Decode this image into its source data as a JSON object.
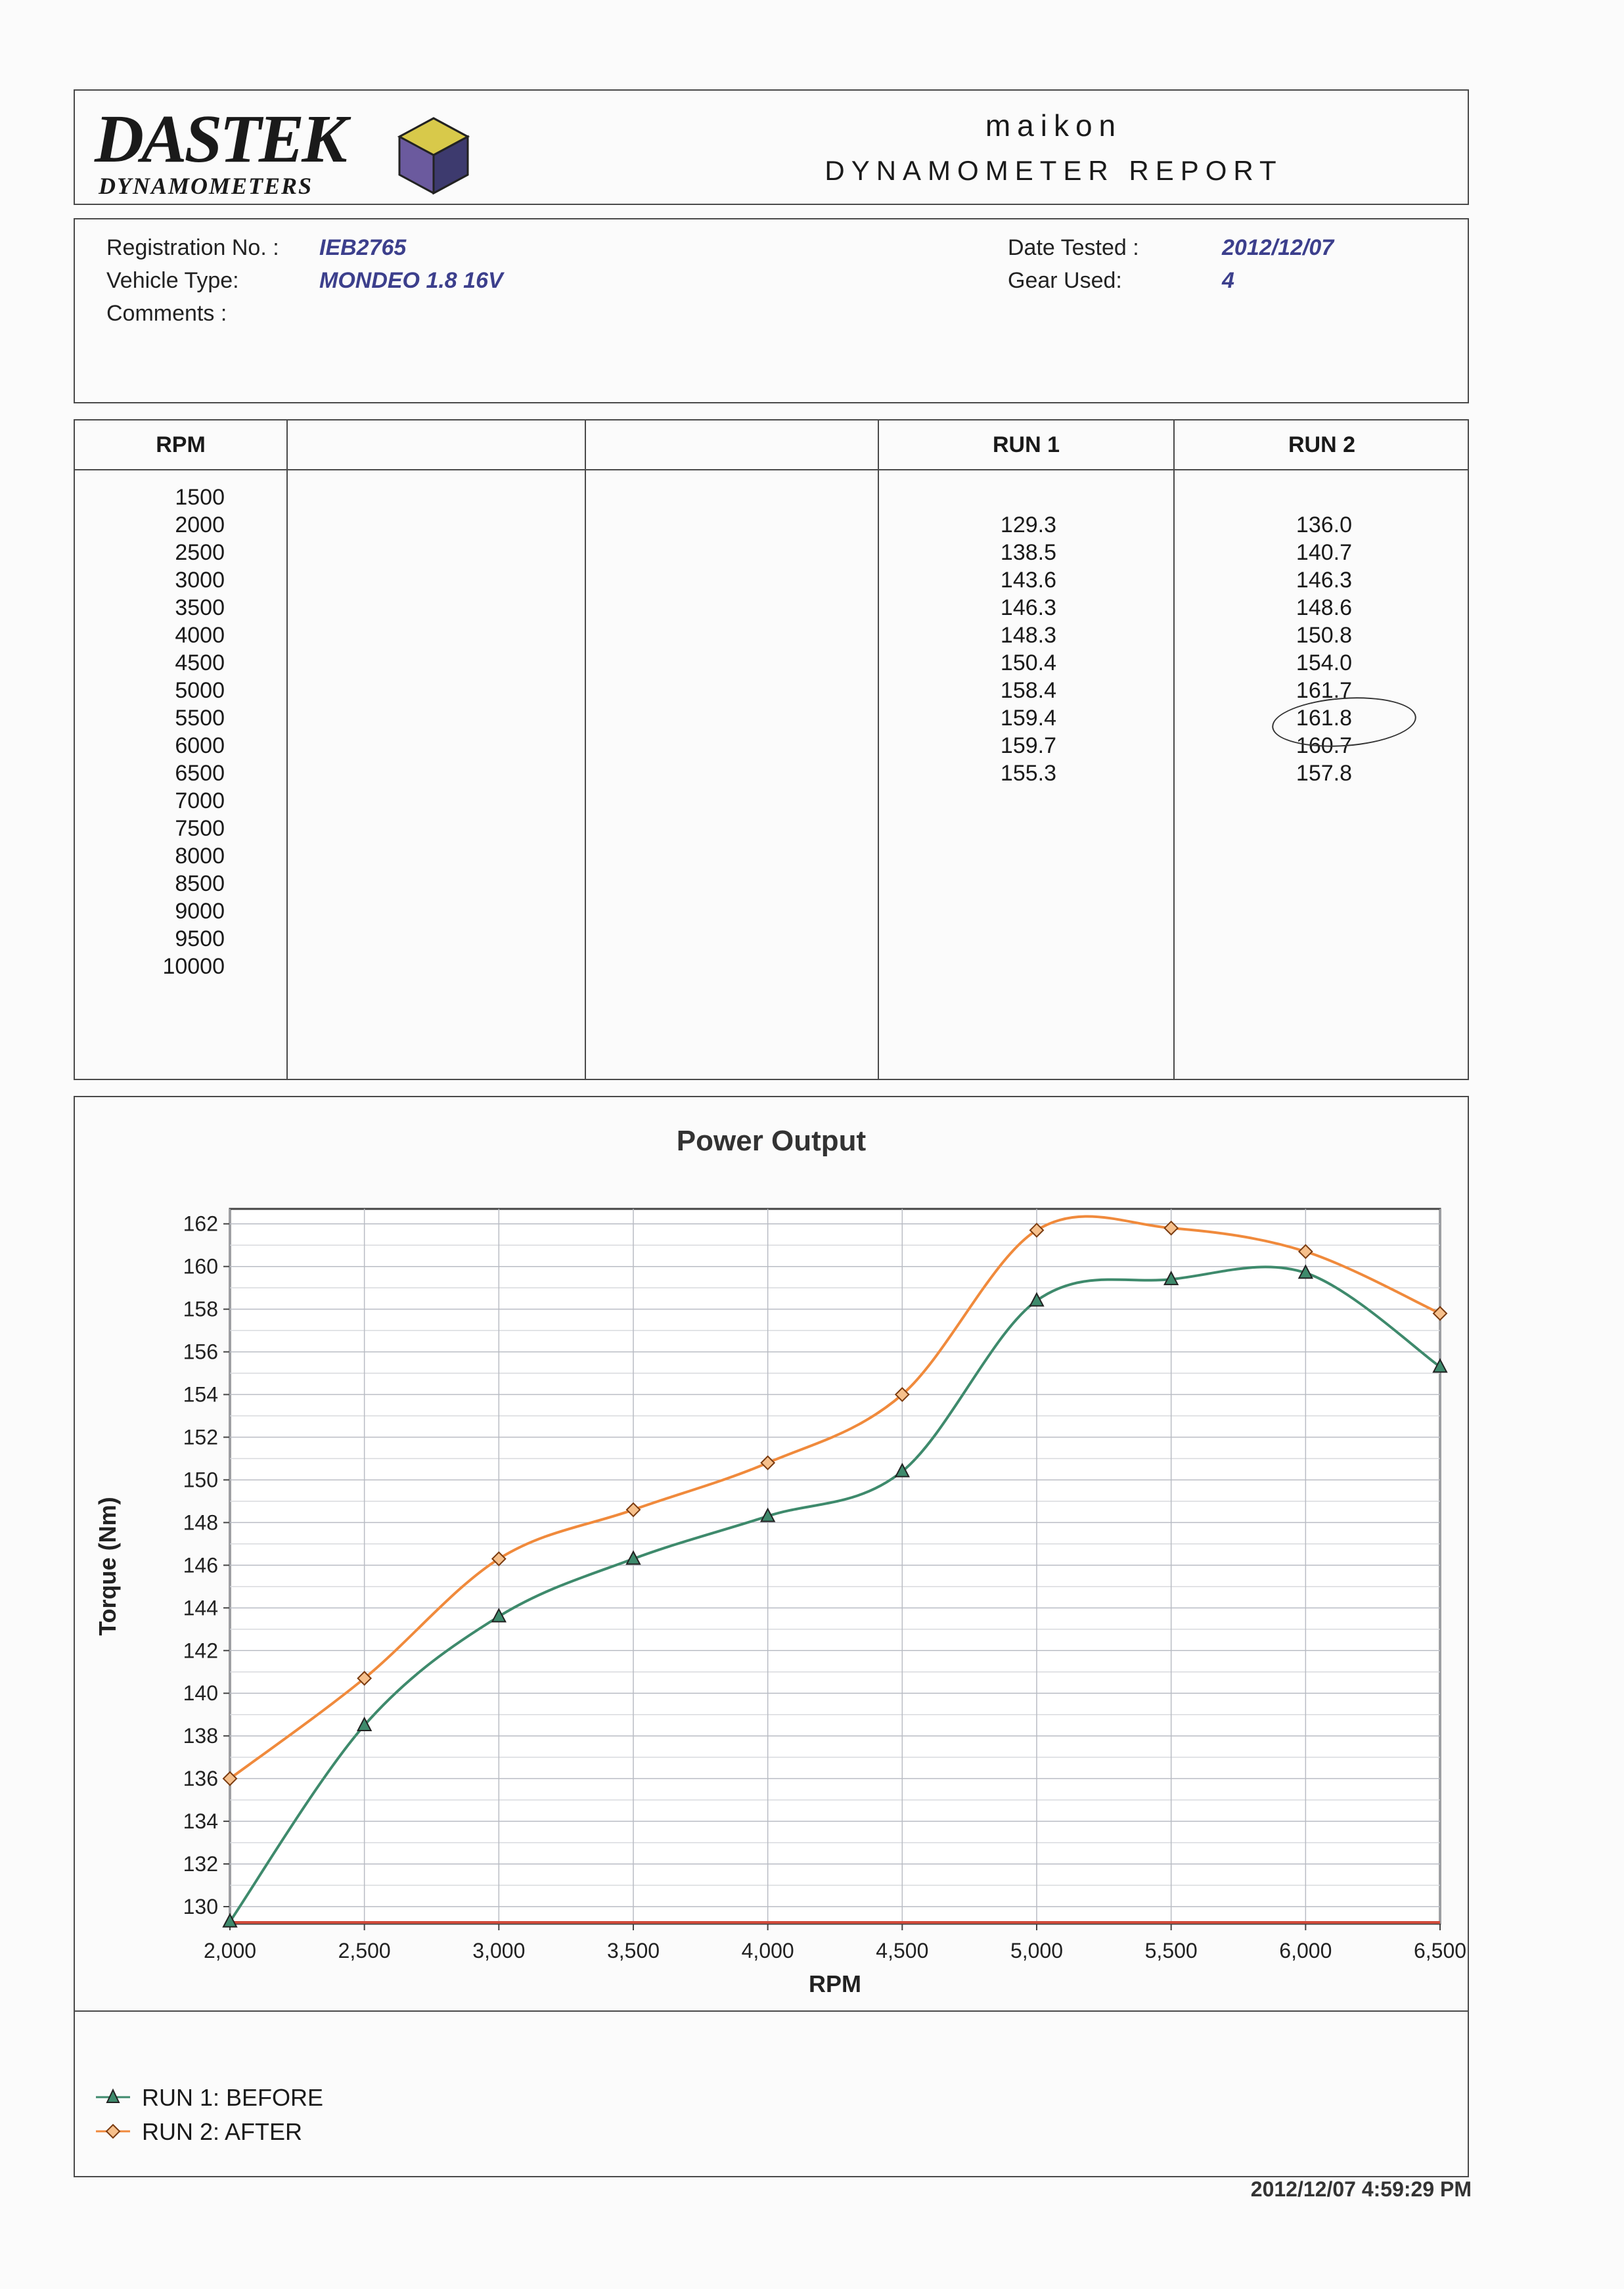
{
  "header": {
    "logo_text": "DASTEK",
    "logo_sub": "DYNAMOMETERS",
    "company": "maikon",
    "report_title": "DYNAMOMETER REPORT"
  },
  "info": {
    "registration_label": "Registration No. :",
    "registration_value": "IEB2765",
    "vehicle_label": "Vehicle Type:",
    "vehicle_value": "MONDEO 1.8 16V",
    "comments_label": "Comments :",
    "date_label": "Date Tested :",
    "date_value": "2012/12/07",
    "gear_label": "Gear Used:",
    "gear_value": "4"
  },
  "table": {
    "headers": [
      "RPM",
      "",
      "",
      "RUN 1",
      "RUN 2"
    ],
    "rpm": [
      "1500",
      "2000",
      "2500",
      "3000",
      "3500",
      "4000",
      "4500",
      "5000",
      "5500",
      "6000",
      "6500",
      "7000",
      "7500",
      "8000",
      "8500",
      "9000",
      "9500",
      "10000"
    ],
    "run1": [
      "",
      "129.3",
      "138.5",
      "143.6",
      "146.3",
      "148.3",
      "150.4",
      "158.4",
      "159.4",
      "159.7",
      "155.3",
      "",
      "",
      "",
      "",
      "",
      "",
      ""
    ],
    "run2": [
      "",
      "136.0",
      "140.7",
      "146.3",
      "148.6",
      "150.8",
      "154.0",
      "161.7",
      "161.8",
      "160.7",
      "157.8",
      "",
      "",
      "",
      "",
      "",
      "",
      ""
    ]
  },
  "chart_data": {
    "type": "line",
    "title": "Power Output",
    "xlabel": "RPM",
    "ylabel": "Torque (Nm)",
    "x": [
      2000,
      2500,
      3000,
      3500,
      4000,
      4500,
      5000,
      5500,
      6000,
      6500
    ],
    "x_tick_labels": [
      "2,000",
      "2,500",
      "3,000",
      "3,500",
      "4,000",
      "4,500",
      "5,000",
      "5,500",
      "6,000",
      "6,500"
    ],
    "y_ticks": [
      130,
      132,
      134,
      136,
      138,
      140,
      142,
      144,
      146,
      148,
      150,
      152,
      154,
      156,
      158,
      160,
      162
    ],
    "xlim": [
      2000,
      6500
    ],
    "ylim": [
      129.2,
      162.7
    ],
    "grid": true,
    "legend_position": "bottom-left",
    "series": [
      {
        "name": "RUN 1: BEFORE",
        "marker": "triangle",
        "color": "#3e8a6c",
        "values": [
          129.3,
          138.5,
          143.6,
          146.3,
          148.3,
          150.4,
          158.4,
          159.4,
          159.7,
          155.3
        ]
      },
      {
        "name": "RUN 2: AFTER",
        "marker": "diamond",
        "color": "#f08a3c",
        "values": [
          136.0,
          140.7,
          146.3,
          148.6,
          150.8,
          154.0,
          161.7,
          161.8,
          160.7,
          157.8
        ]
      }
    ]
  },
  "footer": {
    "timestamp": "2012/12/07 4:59:29 PM"
  }
}
